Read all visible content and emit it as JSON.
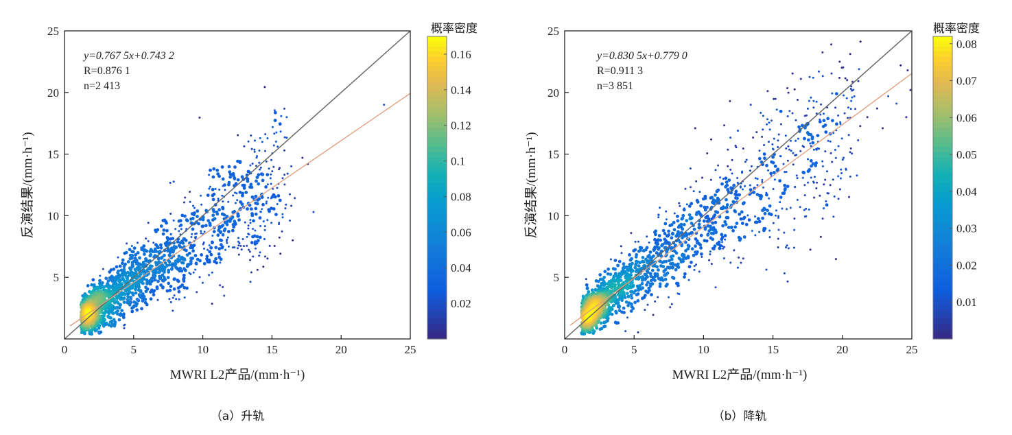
{
  "chart_data": [
    {
      "type": "scatter",
      "panel": "a",
      "caption": "（a）升轨",
      "xlabel": "MWRI L2产品/(mm·h⁻¹)",
      "ylabel": "反演结果/(mm·h⁻¹)",
      "xlim": [
        0,
        25
      ],
      "ylim": [
        0,
        25
      ],
      "xticks": [
        0,
        5,
        10,
        15,
        20,
        25
      ],
      "yticks": [
        5,
        10,
        15,
        20,
        25
      ],
      "grid": false,
      "annotations": [
        "y=0.767 5x+0.743 2",
        "R=0.876 1",
        "n=2 413"
      ],
      "fit": {
        "slope": 0.7675,
        "intercept": 0.7432,
        "color": "#e0a080"
      },
      "reference_line": {
        "slope": 1,
        "intercept": 0,
        "color": "#666666"
      },
      "n": 2413,
      "colorbar": {
        "title": "概率密度",
        "range": [
          0,
          0.17
        ],
        "ticks": [
          0.02,
          0.04,
          0.06,
          0.08,
          0.1,
          0.12,
          0.14,
          0.16
        ],
        "tick_labels": [
          "0.02",
          "0.04",
          "0.06",
          "0.08",
          "0.1",
          "0.12",
          "0.14",
          "0.16"
        ],
        "colormap": "parula"
      },
      "outliers": [
        [
          23.1,
          19.0
        ],
        [
          17.6,
          14.2
        ],
        [
          17.2,
          14.7
        ],
        [
          18.0,
          10.3
        ],
        [
          16.4,
          10.8
        ],
        [
          16.5,
          8.0
        ],
        [
          15.3,
          10.1
        ],
        [
          14.6,
          14.4
        ],
        [
          14.2,
          13.9
        ],
        [
          13.2,
          13.3
        ],
        [
          12.2,
          13.4
        ],
        [
          12.4,
          12.6
        ],
        [
          10.8,
          13.8
        ],
        [
          11.6,
          12.1
        ],
        [
          13.3,
          11.0
        ],
        [
          12.0,
          9.7
        ],
        [
          13.3,
          9.2
        ],
        [
          9.9,
          10.9
        ],
        [
          9.3,
          10.8
        ],
        [
          10.4,
          9.6
        ],
        [
          11.2,
          9.0
        ],
        [
          12.9,
          8.1
        ],
        [
          11.4,
          7.4
        ],
        [
          13.9,
          7.8
        ]
      ]
    },
    {
      "type": "scatter",
      "panel": "b",
      "caption": "（b）降轨",
      "xlabel": "MWRI L2产品/(mm·h⁻¹)",
      "ylabel": "反演结果/(mm·h⁻¹)",
      "xlim": [
        0,
        25
      ],
      "ylim": [
        0,
        25
      ],
      "xticks": [
        0,
        5,
        10,
        15,
        20,
        25
      ],
      "yticks": [
        5,
        10,
        15,
        20,
        25
      ],
      "grid": false,
      "annotations": [
        "y=0.830 5x+0.779 0",
        "R=0.911 3",
        "n=3 851"
      ],
      "fit": {
        "slope": 0.8305,
        "intercept": 0.779,
        "color": "#e0a080"
      },
      "reference_line": {
        "slope": 1,
        "intercept": 0,
        "color": "#666666"
      },
      "n": 3851,
      "colorbar": {
        "title": "概率密度",
        "range": [
          0,
          0.082
        ],
        "ticks": [
          0.01,
          0.02,
          0.03,
          0.04,
          0.05,
          0.06,
          0.07,
          0.08
        ],
        "tick_labels": [
          "0.01",
          "0.02",
          "0.03",
          "0.04",
          "0.05",
          "0.06",
          "0.07",
          "0.08"
        ],
        "colormap": "parula"
      },
      "outliers": [
        [
          19.8,
          22.5
        ],
        [
          21.2,
          21.9
        ],
        [
          24.2,
          22.2
        ],
        [
          24.7,
          21.8
        ],
        [
          17.9,
          21.2
        ],
        [
          18.3,
          21.7
        ],
        [
          22.9,
          17.1
        ],
        [
          23.3,
          19.7
        ],
        [
          24.9,
          20.2
        ],
        [
          24.6,
          18.0
        ],
        [
          23.9,
          19.1
        ],
        [
          20.7,
          19.6
        ],
        [
          11.9,
          19.3
        ],
        [
          13.4,
          19.0
        ],
        [
          9.4,
          17.1
        ],
        [
          14.3,
          18.1
        ],
        [
          16.2,
          18.5
        ],
        [
          17.3,
          18.1
        ],
        [
          18.9,
          13.6
        ],
        [
          19.7,
          13.2
        ],
        [
          21.8,
          18.0
        ],
        [
          22.5,
          18.7
        ],
        [
          15.5,
          11.1
        ],
        [
          17.6,
          10.5
        ]
      ]
    }
  ],
  "panels": {
    "a": {
      "caption": "（a）升轨"
    },
    "b": {
      "caption": "（b）降轨"
    }
  }
}
